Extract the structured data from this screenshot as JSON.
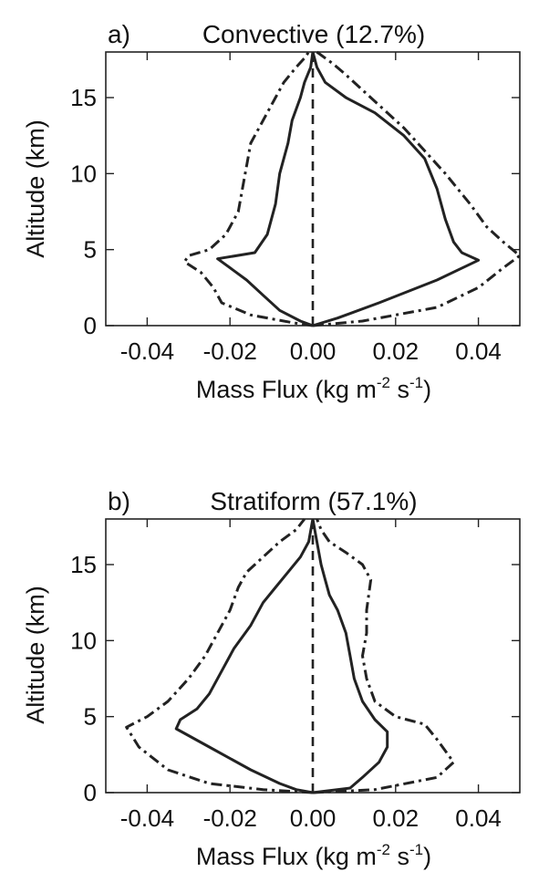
{
  "chart_data": [
    {
      "type": "line",
      "panel_label": "a)",
      "title": "Convective (12.7%)",
      "xlabel": {
        "base": "Mass Flux (kg m",
        "exp1": "-2",
        "mid": " s",
        "exp2": "-1",
        "end": ")"
      },
      "ylabel": "Altitude (km)",
      "xlim": [
        -0.05,
        0.05
      ],
      "ylim": [
        0,
        18
      ],
      "xticks": [
        "-0.04",
        "-0.02",
        "0.00",
        "0.02",
        "0.04"
      ],
      "xtick_values": [
        -0.04,
        -0.02,
        0.0,
        0.02,
        0.04
      ],
      "yticks": [
        "0",
        "5",
        "10",
        "15"
      ],
      "ytick_values": [
        0,
        5,
        10,
        15
      ],
      "grid": false,
      "series": [
        {
          "style": "solid",
          "x": [
            0.0,
            -0.003,
            -0.008,
            -0.012,
            -0.016,
            -0.021,
            -0.023,
            -0.014,
            -0.011,
            -0.009,
            -0.008,
            -0.006,
            -0.005,
            -0.003,
            -0.002,
            -0.0005,
            0.0
          ],
          "y": [
            0.0,
            0.3,
            1.0,
            2.0,
            3.0,
            4.0,
            4.4,
            4.8,
            6.0,
            8.0,
            10.0,
            12.0,
            13.5,
            15.0,
            16.0,
            17.0,
            18.0
          ]
        },
        {
          "style": "solid",
          "x": [
            0.0,
            0.006,
            0.016,
            0.03,
            0.04,
            0.036,
            0.034,
            0.032,
            0.03,
            0.027,
            0.022,
            0.015,
            0.008,
            0.003,
            0.001,
            0.0
          ],
          "y": [
            0.0,
            0.5,
            1.5,
            3.0,
            4.3,
            4.8,
            5.5,
            7.0,
            9.0,
            11.0,
            12.5,
            14.0,
            15.0,
            16.0,
            17.0,
            18.0
          ]
        },
        {
          "style": "dashdot",
          "x": [
            0.0,
            -0.005,
            -0.015,
            -0.022,
            -0.024,
            -0.027,
            -0.031,
            -0.03,
            -0.025,
            -0.021,
            -0.018,
            -0.017,
            -0.016,
            -0.015,
            -0.012,
            -0.009,
            -0.007,
            -0.004,
            -0.002,
            -0.001
          ],
          "y": [
            0.0,
            0.2,
            0.7,
            1.5,
            2.5,
            3.5,
            4.2,
            4.6,
            5.0,
            6.0,
            7.5,
            9.0,
            10.5,
            12.0,
            13.5,
            15.0,
            16.0,
            17.0,
            17.6,
            18.0
          ]
        },
        {
          "style": "dashdot",
          "x": [
            0.0,
            0.012,
            0.03,
            0.04,
            0.046,
            0.05,
            0.046,
            0.042,
            0.038,
            0.032,
            0.027,
            0.022,
            0.016,
            0.012,
            0.008,
            0.005,
            0.003,
            0.001
          ],
          "y": [
            0.0,
            0.3,
            1.2,
            2.5,
            3.8,
            4.6,
            5.5,
            6.5,
            8.0,
            10.0,
            11.5,
            13.0,
            14.5,
            15.5,
            16.5,
            17.2,
            17.6,
            18.0
          ]
        },
        {
          "style": "dashed",
          "x": [
            0.0,
            0.0
          ],
          "y": [
            0.0,
            18.0
          ]
        }
      ]
    },
    {
      "type": "line",
      "panel_label": "b)",
      "title": "Stratiform (57.1%)",
      "xlabel": {
        "base": "Mass Flux (kg m",
        "exp1": "-2",
        "mid": " s",
        "exp2": "-1",
        "end": ")"
      },
      "ylabel": "Altitude (km)",
      "xlim": [
        -0.05,
        0.05
      ],
      "ylim": [
        0,
        18
      ],
      "xticks": [
        "-0.04",
        "-0.02",
        "0.00",
        "0.02",
        "0.04"
      ],
      "xtick_values": [
        -0.04,
        -0.02,
        0.0,
        0.02,
        0.04
      ],
      "yticks": [
        "0",
        "5",
        "10",
        "15"
      ],
      "ytick_values": [
        0,
        5,
        10,
        15
      ],
      "grid": false,
      "series": [
        {
          "style": "solid",
          "x": [
            0.0,
            -0.004,
            -0.008,
            -0.015,
            -0.025,
            -0.033,
            -0.032,
            -0.028,
            -0.025,
            -0.022,
            -0.019,
            -0.015,
            -0.012,
            -0.009,
            -0.006,
            -0.003,
            -0.001,
            0.0
          ],
          "y": [
            0.0,
            0.2,
            0.6,
            1.5,
            3.0,
            4.2,
            4.8,
            5.5,
            6.5,
            8.0,
            9.5,
            11.0,
            12.5,
            13.5,
            14.5,
            15.5,
            16.5,
            18.0
          ]
        },
        {
          "style": "solid",
          "x": [
            0.0,
            0.009,
            0.012,
            0.016,
            0.018,
            0.018,
            0.015,
            0.012,
            0.01,
            0.009,
            0.008,
            0.006,
            0.004,
            0.003,
            0.002,
            0.001,
            0.0
          ],
          "y": [
            0.0,
            0.3,
            1.0,
            2.0,
            3.0,
            4.0,
            4.8,
            6.0,
            7.5,
            9.0,
            10.5,
            12.0,
            13.0,
            14.0,
            15.0,
            16.5,
            18.0
          ]
        },
        {
          "style": "dashdot",
          "x": [
            0.0,
            -0.012,
            -0.025,
            -0.035,
            -0.042,
            -0.045,
            -0.04,
            -0.035,
            -0.03,
            -0.026,
            -0.023,
            -0.02,
            -0.018,
            -0.016,
            -0.012,
            -0.008,
            -0.004,
            -0.002
          ],
          "y": [
            0.0,
            0.2,
            0.6,
            1.5,
            3.0,
            4.3,
            5.0,
            6.0,
            7.5,
            9.0,
            10.5,
            12.0,
            13.5,
            14.5,
            15.5,
            16.5,
            17.3,
            18.0
          ]
        },
        {
          "style": "dashdot",
          "x": [
            0.0,
            0.015,
            0.03,
            0.034,
            0.03,
            0.027,
            0.02,
            0.015,
            0.013,
            0.012,
            0.013,
            0.013,
            0.014,
            0.012,
            0.008,
            0.004,
            0.002,
            0.001
          ],
          "y": [
            0.0,
            0.2,
            1.0,
            2.0,
            3.5,
            4.5,
            5.0,
            6.0,
            7.5,
            9.0,
            10.5,
            12.0,
            14.0,
            15.0,
            15.8,
            16.5,
            17.3,
            18.0
          ]
        },
        {
          "style": "dashed",
          "x": [
            0.0,
            0.0
          ],
          "y": [
            0.0,
            18.0
          ]
        }
      ]
    }
  ]
}
